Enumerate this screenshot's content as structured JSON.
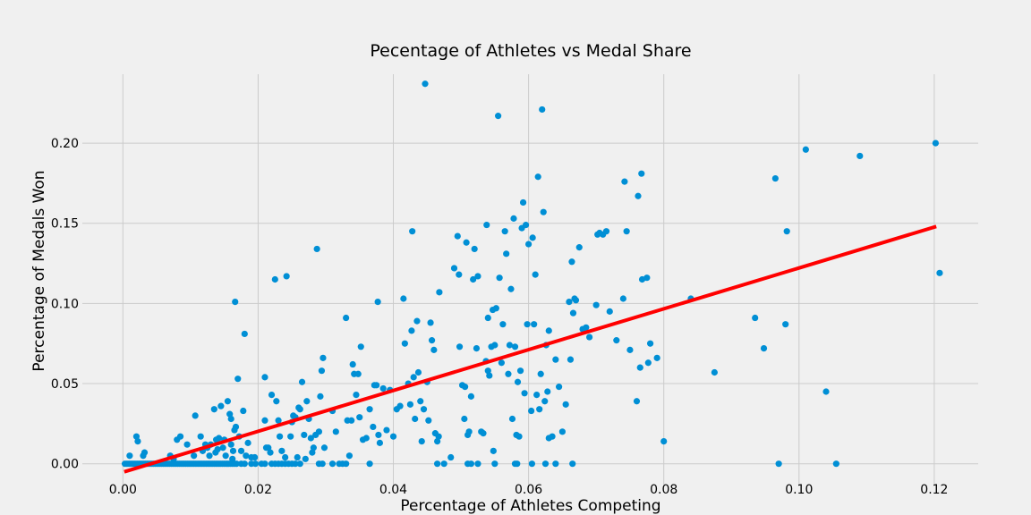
{
  "chart_data": {
    "type": "scatter",
    "title": "Pecentage of Athletes vs Medal Share",
    "xlabel": "Percentage of Athletes Competing",
    "ylabel": "Percentage of Medals Won",
    "xlim": [
      -0.006,
      0.1265
    ],
    "ylim": [
      -0.013,
      0.243
    ],
    "xticks": [
      0.0,
      0.02,
      0.04,
      0.06,
      0.08,
      0.1,
      0.12
    ],
    "xtick_labels": [
      "0.00",
      "0.02",
      "0.04",
      "0.06",
      "0.08",
      "0.10",
      "0.12"
    ],
    "yticks": [
      0.0,
      0.05,
      0.1,
      0.15,
      0.2
    ],
    "ytick_labels": [
      "0.00",
      "0.05",
      "0.10",
      "0.15",
      "0.20"
    ],
    "grid": true,
    "colors": {
      "points": "#008fd5",
      "trend": "#ff0000",
      "grid": "#cbcbcb",
      "background": "#f0f0f0"
    },
    "trend_line": {
      "x": [
        0.0002,
        0.1203
      ],
      "y": [
        -0.005,
        0.148
      ]
    },
    "points": [
      [
        0.0003,
        0
      ],
      [
        0.0006,
        0
      ],
      [
        0.0009,
        0
      ],
      [
        0.0012,
        0
      ],
      [
        0.0015,
        0
      ],
      [
        0.0018,
        0
      ],
      [
        0.0021,
        0
      ],
      [
        0.0024,
        0
      ],
      [
        0.0027,
        0
      ],
      [
        0.003,
        0
      ],
      [
        0.0033,
        0
      ],
      [
        0.0036,
        0
      ],
      [
        0.0039,
        0
      ],
      [
        0.0042,
        0
      ],
      [
        0.0045,
        0
      ],
      [
        0.0048,
        0
      ],
      [
        0.0051,
        0
      ],
      [
        0.0054,
        0
      ],
      [
        0.0057,
        0
      ],
      [
        0.006,
        0
      ],
      [
        0.0063,
        0
      ],
      [
        0.0066,
        0
      ],
      [
        0.0069,
        0
      ],
      [
        0.0072,
        0
      ],
      [
        0.0075,
        0
      ],
      [
        0.0078,
        0
      ],
      [
        0.0081,
        0
      ],
      [
        0.0084,
        0
      ],
      [
        0.0087,
        0
      ],
      [
        0.009,
        0
      ],
      [
        0.0093,
        0
      ],
      [
        0.0096,
        0
      ],
      [
        0.0099,
        0
      ],
      [
        0.0102,
        0
      ],
      [
        0.0105,
        0
      ],
      [
        0.0108,
        0
      ],
      [
        0.0111,
        0
      ],
      [
        0.0114,
        0
      ],
      [
        0.0117,
        0
      ],
      [
        0.012,
        0
      ],
      [
        0.0123,
        0
      ],
      [
        0.0126,
        0
      ],
      [
        0.0129,
        0
      ],
      [
        0.0132,
        0
      ],
      [
        0.0135,
        0
      ],
      [
        0.0138,
        0
      ],
      [
        0.0141,
        0
      ],
      [
        0.0144,
        0
      ],
      [
        0.0147,
        0
      ],
      [
        0.015,
        0
      ],
      [
        0.0153,
        0
      ],
      [
        0.0156,
        0
      ],
      [
        0.0159,
        0
      ],
      [
        0.0162,
        0
      ],
      [
        0.0165,
        0
      ],
      [
        0.0168,
        0
      ],
      [
        0.0175,
        0
      ],
      [
        0.018,
        0
      ],
      [
        0.019,
        0
      ],
      [
        0.0196,
        0
      ],
      [
        0.0205,
        0
      ],
      [
        0.021,
        0
      ],
      [
        0.022,
        0
      ],
      [
        0.0225,
        0
      ],
      [
        0.023,
        0
      ],
      [
        0.0235,
        0
      ],
      [
        0.024,
        0
      ],
      [
        0.0245,
        0
      ],
      [
        0.025,
        0
      ],
      [
        0.0255,
        0
      ],
      [
        0.0262,
        0
      ],
      [
        0.029,
        0
      ],
      [
        0.0295,
        0
      ],
      [
        0.031,
        0
      ],
      [
        0.032,
        0
      ],
      [
        0.0325,
        0
      ],
      [
        0.033,
        0
      ],
      [
        0.0365,
        0
      ],
      [
        0.0475,
        0
      ],
      [
        0.0465,
        0
      ],
      [
        0.051,
        0
      ],
      [
        0.0515,
        0
      ],
      [
        0.0525,
        0
      ],
      [
        0.055,
        0
      ],
      [
        0.058,
        0
      ],
      [
        0.0583,
        0
      ],
      [
        0.0605,
        0
      ],
      [
        0.0625,
        0
      ],
      [
        0.064,
        0
      ],
      [
        0.0665,
        0
      ],
      [
        0.097,
        0
      ],
      [
        0.1055,
        0
      ],
      [
        0.001,
        0.005
      ],
      [
        0.002,
        0.017
      ],
      [
        0.0022,
        0.014
      ],
      [
        0.003,
        0.005
      ],
      [
        0.0032,
        0.007
      ],
      [
        0.007,
        0.005
      ],
      [
        0.0075,
        0.003
      ],
      [
        0.008,
        0.015
      ],
      [
        0.0085,
        0.017
      ],
      [
        0.0095,
        0.012
      ],
      [
        0.0105,
        0.005
      ],
      [
        0.0107,
        0.03
      ],
      [
        0.0115,
        0.017
      ],
      [
        0.0118,
        0.008
      ],
      [
        0.0122,
        0.012
      ],
      [
        0.0125,
        0.01
      ],
      [
        0.0128,
        0.005
      ],
      [
        0.013,
        0.012
      ],
      [
        0.0135,
        0.034
      ],
      [
        0.0137,
        0.007
      ],
      [
        0.0138,
        0.015
      ],
      [
        0.014,
        0.009
      ],
      [
        0.0142,
        0.016
      ],
      [
        0.0145,
        0.036
      ],
      [
        0.0148,
        0.01
      ],
      [
        0.015,
        0.015
      ],
      [
        0.0152,
        0.005
      ],
      [
        0.0155,
        0.039
      ],
      [
        0.0158,
        0.031
      ],
      [
        0.016,
        0.028
      ],
      [
        0.016,
        0.012
      ],
      [
        0.0162,
        0.003
      ],
      [
        0.0163,
        0.008
      ],
      [
        0.0165,
        0.021
      ],
      [
        0.0166,
        0.101
      ],
      [
        0.0167,
        0.023
      ],
      [
        0.017,
        0.053
      ],
      [
        0.0172,
        0.017
      ],
      [
        0.0175,
        0.008
      ],
      [
        0.0178,
        0.033
      ],
      [
        0.018,
        0.081
      ],
      [
        0.0182,
        0.005
      ],
      [
        0.0185,
        0.013
      ],
      [
        0.019,
        0.004
      ],
      [
        0.0195,
        0.004
      ],
      [
        0.021,
        0.054
      ],
      [
        0.021,
        0.027
      ],
      [
        0.0212,
        0.01
      ],
      [
        0.0215,
        0.01
      ],
      [
        0.0218,
        0.007
      ],
      [
        0.022,
        0.043
      ],
      [
        0.0225,
        0.115
      ],
      [
        0.0227,
        0.039
      ],
      [
        0.023,
        0.027
      ],
      [
        0.0232,
        0.017
      ],
      [
        0.0235,
        0.008
      ],
      [
        0.024,
        0.004
      ],
      [
        0.0242,
        0.117
      ],
      [
        0.0248,
        0.017
      ],
      [
        0.025,
        0.026
      ],
      [
        0.0252,
        0.03
      ],
      [
        0.0255,
        0.029
      ],
      [
        0.0258,
        0.004
      ],
      [
        0.026,
        0.035
      ],
      [
        0.0262,
        0.034
      ],
      [
        0.0265,
        0.051
      ],
      [
        0.0268,
        0.018
      ],
      [
        0.027,
        0.003
      ],
      [
        0.0272,
        0.039
      ],
      [
        0.0275,
        0.028
      ],
      [
        0.0278,
        0.016
      ],
      [
        0.028,
        0.007
      ],
      [
        0.0282,
        0.01
      ],
      [
        0.0285,
        0.018
      ],
      [
        0.0287,
        0.134
      ],
      [
        0.029,
        0.02
      ],
      [
        0.0292,
        0.042
      ],
      [
        0.0294,
        0.058
      ],
      [
        0.0296,
        0.066
      ],
      [
        0.0298,
        0.01
      ],
      [
        0.031,
        0.033
      ],
      [
        0.0315,
        0.02
      ],
      [
        0.033,
        0.091
      ],
      [
        0.0332,
        0.027
      ],
      [
        0.0335,
        0.005
      ],
      [
        0.0338,
        0.027
      ],
      [
        0.034,
        0.062
      ],
      [
        0.0342,
        0.056
      ],
      [
        0.0345,
        0.043
      ],
      [
        0.0348,
        0.056
      ],
      [
        0.035,
        0.029
      ],
      [
        0.0352,
        0.073
      ],
      [
        0.0355,
        0.015
      ],
      [
        0.036,
        0.016
      ],
      [
        0.0365,
        0.034
      ],
      [
        0.037,
        0.023
      ],
      [
        0.0372,
        0.049
      ],
      [
        0.0375,
        0.049
      ],
      [
        0.0377,
        0.101
      ],
      [
        0.0378,
        0.018
      ],
      [
        0.038,
        0.013
      ],
      [
        0.0385,
        0.047
      ],
      [
        0.039,
        0.021
      ],
      [
        0.0395,
        0.046
      ],
      [
        0.04,
        0.017
      ],
      [
        0.0405,
        0.034
      ],
      [
        0.041,
        0.036
      ],
      [
        0.0415,
        0.103
      ],
      [
        0.0417,
        0.075
      ],
      [
        0.0422,
        0.05
      ],
      [
        0.0425,
        0.037
      ],
      [
        0.0427,
        0.083
      ],
      [
        0.0428,
        0.145
      ],
      [
        0.043,
        0.054
      ],
      [
        0.0432,
        0.028
      ],
      [
        0.0435,
        0.089
      ],
      [
        0.0437,
        0.057
      ],
      [
        0.044,
        0.039
      ],
      [
        0.0442,
        0.014
      ],
      [
        0.0445,
        0.034
      ],
      [
        0.0447,
        0.237
      ],
      [
        0.045,
        0.051
      ],
      [
        0.0452,
        0.027
      ],
      [
        0.0455,
        0.088
      ],
      [
        0.0457,
        0.077
      ],
      [
        0.046,
        0.071
      ],
      [
        0.0462,
        0.019
      ],
      [
        0.0465,
        0.014
      ],
      [
        0.0467,
        0.017
      ],
      [
        0.0468,
        0.107
      ],
      [
        0.0485,
        0.004
      ],
      [
        0.049,
        0.122
      ],
      [
        0.0495,
        0.142
      ],
      [
        0.0498,
        0.073
      ],
      [
        0.0497,
        0.118
      ],
      [
        0.0502,
        0.049
      ],
      [
        0.0505,
        0.028
      ],
      [
        0.0506,
        0.048
      ],
      [
        0.0508,
        0.138
      ],
      [
        0.051,
        0.018
      ],
      [
        0.0512,
        0.02
      ],
      [
        0.0515,
        0.042
      ],
      [
        0.0518,
        0.115
      ],
      [
        0.052,
        0.134
      ],
      [
        0.0523,
        0.072
      ],
      [
        0.0525,
        0.117
      ],
      [
        0.053,
        0.02
      ],
      [
        0.0533,
        0.019
      ],
      [
        0.0537,
        0.064
      ],
      [
        0.0538,
        0.149
      ],
      [
        0.054,
        0.058
      ],
      [
        0.054,
        0.091
      ],
      [
        0.0542,
        0.055
      ],
      [
        0.0545,
        0.073
      ],
      [
        0.0547,
        0.096
      ],
      [
        0.0548,
        0.008
      ],
      [
        0.055,
        0.074
      ],
      [
        0.0552,
        0.097
      ],
      [
        0.0555,
        0.217
      ],
      [
        0.0557,
        0.116
      ],
      [
        0.056,
        0.063
      ],
      [
        0.0562,
        0.087
      ],
      [
        0.0565,
        0.145
      ],
      [
        0.0567,
        0.131
      ],
      [
        0.057,
        0.056
      ],
      [
        0.0572,
        0.074
      ],
      [
        0.0574,
        0.109
      ],
      [
        0.0576,
        0.028
      ],
      [
        0.0578,
        0.153
      ],
      [
        0.058,
        0.073
      ],
      [
        0.0582,
        0.018
      ],
      [
        0.0584,
        0.051
      ],
      [
        0.0586,
        0.017
      ],
      [
        0.0588,
        0.058
      ],
      [
        0.059,
        0.147
      ],
      [
        0.0592,
        0.163
      ],
      [
        0.0594,
        0.044
      ],
      [
        0.0596,
        0.149
      ],
      [
        0.0598,
        0.087
      ],
      [
        0.06,
        0.137
      ],
      [
        0.0604,
        0.033
      ],
      [
        0.0606,
        0.141
      ],
      [
        0.0608,
        0.087
      ],
      [
        0.061,
        0.118
      ],
      [
        0.0612,
        0.043
      ],
      [
        0.0614,
        0.179
      ],
      [
        0.0616,
        0.034
      ],
      [
        0.0618,
        0.056
      ],
      [
        0.062,
        0.221
      ],
      [
        0.0622,
        0.157
      ],
      [
        0.0624,
        0.039
      ],
      [
        0.0626,
        0.074
      ],
      [
        0.0628,
        0.045
      ],
      [
        0.063,
        0.016
      ],
      [
        0.063,
        0.083
      ],
      [
        0.0635,
        0.017
      ],
      [
        0.064,
        0.065
      ],
      [
        0.0645,
        0.048
      ],
      [
        0.065,
        0.02
      ],
      [
        0.0655,
        0.037
      ],
      [
        0.066,
        0.101
      ],
      [
        0.0662,
        0.065
      ],
      [
        0.0664,
        0.126
      ],
      [
        0.0666,
        0.094
      ],
      [
        0.0668,
        0.103
      ],
      [
        0.067,
        0.102
      ],
      [
        0.0675,
        0.135
      ],
      [
        0.068,
        0.084
      ],
      [
        0.0685,
        0.085
      ],
      [
        0.069,
        0.079
      ],
      [
        0.07,
        0.099
      ],
      [
        0.0702,
        0.143
      ],
      [
        0.0705,
        0.144
      ],
      [
        0.071,
        0.143
      ],
      [
        0.0715,
        0.145
      ],
      [
        0.072,
        0.095
      ],
      [
        0.073,
        0.077
      ],
      [
        0.074,
        0.103
      ],
      [
        0.0742,
        0.176
      ],
      [
        0.0745,
        0.145
      ],
      [
        0.075,
        0.071
      ],
      [
        0.076,
        0.039
      ],
      [
        0.0762,
        0.167
      ],
      [
        0.0765,
        0.06
      ],
      [
        0.0767,
        0.181
      ],
      [
        0.0768,
        0.115
      ],
      [
        0.0775,
        0.116
      ],
      [
        0.0777,
        0.063
      ],
      [
        0.078,
        0.075
      ],
      [
        0.079,
        0.066
      ],
      [
        0.08,
        0.014
      ],
      [
        0.084,
        0.103
      ],
      [
        0.0875,
        0.057
      ],
      [
        0.0935,
        0.091
      ],
      [
        0.0948,
        0.072
      ],
      [
        0.0965,
        0.178
      ],
      [
        0.098,
        0.087
      ],
      [
        0.0982,
        0.145
      ],
      [
        0.101,
        0.196
      ],
      [
        0.104,
        0.045
      ],
      [
        0.109,
        0.192
      ],
      [
        0.1202,
        0.2
      ],
      [
        0.1208,
        0.119
      ]
    ]
  }
}
